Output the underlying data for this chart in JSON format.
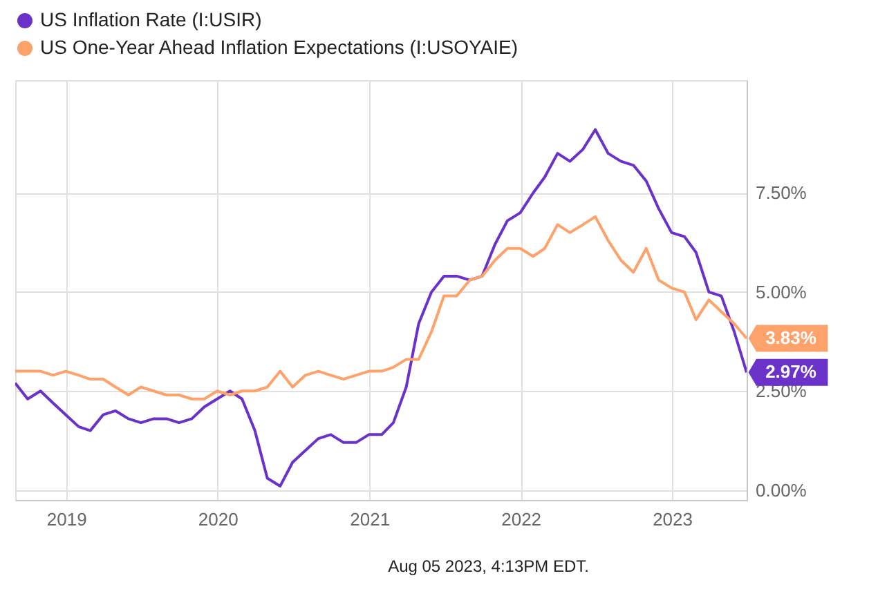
{
  "chart_data": {
    "type": "line",
    "x": [
      "2018-08-31",
      "2018-09-30",
      "2018-10-31",
      "2018-11-30",
      "2018-12-31",
      "2019-01-31",
      "2019-02-28",
      "2019-03-31",
      "2019-04-30",
      "2019-05-31",
      "2019-06-30",
      "2019-07-31",
      "2019-08-31",
      "2019-09-30",
      "2019-10-31",
      "2019-11-30",
      "2019-12-31",
      "2020-01-31",
      "2020-02-29",
      "2020-03-31",
      "2020-04-30",
      "2020-05-31",
      "2020-06-30",
      "2020-07-31",
      "2020-08-31",
      "2020-09-30",
      "2020-10-31",
      "2020-11-30",
      "2020-12-31",
      "2021-01-31",
      "2021-02-28",
      "2021-03-31",
      "2021-04-30",
      "2021-05-31",
      "2021-06-30",
      "2021-07-31",
      "2021-08-31",
      "2021-09-30",
      "2021-10-31",
      "2021-11-30",
      "2021-12-31",
      "2022-01-31",
      "2022-02-28",
      "2022-03-31",
      "2022-04-30",
      "2022-05-31",
      "2022-06-30",
      "2022-07-31",
      "2022-08-31",
      "2022-09-30",
      "2022-10-31",
      "2022-11-30",
      "2022-12-31",
      "2023-01-31",
      "2023-02-28",
      "2023-03-31",
      "2023-04-30",
      "2023-05-31",
      "2023-06-30"
    ],
    "series": [
      {
        "name": "US Inflation Rate (I:USIR)",
        "color": "#6a32c9",
        "values": [
          2.7,
          2.3,
          2.5,
          2.2,
          1.9,
          1.6,
          1.5,
          1.9,
          2.0,
          1.8,
          1.7,
          1.8,
          1.8,
          1.7,
          1.8,
          2.1,
          2.3,
          2.5,
          2.3,
          1.5,
          0.3,
          0.1,
          0.7,
          1.0,
          1.3,
          1.4,
          1.2,
          1.2,
          1.4,
          1.4,
          1.7,
          2.6,
          4.2,
          5.0,
          5.4,
          5.4,
          5.3,
          5.4,
          6.2,
          6.8,
          7.0,
          7.5,
          7.9,
          8.5,
          8.3,
          8.6,
          9.1,
          8.5,
          8.3,
          8.2,
          7.8,
          7.1,
          6.5,
          6.4,
          6.0,
          5.0,
          4.9,
          4.0,
          2.97
        ],
        "value_labels": [
          null,
          null,
          null,
          null,
          null,
          null,
          null,
          null,
          null,
          null,
          null,
          null,
          null,
          null,
          null,
          null,
          null,
          null,
          null,
          null,
          null,
          null,
          null,
          null,
          null,
          null,
          null,
          null,
          null,
          null,
          null,
          null,
          null,
          null,
          null,
          null,
          null,
          null,
          null,
          null,
          null,
          null,
          null,
          null,
          null,
          null,
          null,
          null,
          null,
          null,
          null,
          null,
          null,
          null,
          null,
          null,
          null,
          null,
          "2.97%"
        ]
      },
      {
        "name": "US One-Year Ahead Inflation Expectations (I:USOYAIE)",
        "color": "#fda26b",
        "values": [
          3.0,
          3.0,
          3.0,
          2.9,
          3.0,
          2.9,
          2.8,
          2.8,
          2.6,
          2.4,
          2.6,
          2.5,
          2.4,
          2.4,
          2.3,
          2.3,
          2.5,
          2.4,
          2.5,
          2.5,
          2.6,
          3.0,
          2.6,
          2.9,
          3.0,
          2.9,
          2.8,
          2.9,
          3.0,
          3.0,
          3.1,
          3.3,
          3.3,
          4.0,
          4.9,
          4.9,
          5.3,
          5.4,
          5.8,
          6.1,
          6.1,
          5.9,
          6.1,
          6.7,
          6.5,
          6.7,
          6.9,
          6.3,
          5.8,
          5.5,
          6.1,
          5.3,
          5.1,
          5.0,
          4.3,
          4.8,
          4.5,
          4.2,
          3.83
        ],
        "value_labels": [
          null,
          null,
          null,
          null,
          null,
          null,
          null,
          null,
          null,
          null,
          null,
          null,
          null,
          null,
          null,
          null,
          null,
          null,
          null,
          null,
          null,
          null,
          null,
          null,
          null,
          null,
          null,
          null,
          null,
          null,
          null,
          null,
          null,
          null,
          null,
          null,
          null,
          null,
          null,
          null,
          null,
          null,
          null,
          null,
          null,
          null,
          null,
          null,
          null,
          null,
          null,
          null,
          null,
          null,
          null,
          null,
          null,
          null,
          "3.83%"
        ]
      }
    ],
    "xlim": [
      "2018-08-31",
      "2023-06-30"
    ],
    "xticks": [
      "2019",
      "2020",
      "2021",
      "2022",
      "2023"
    ],
    "ylim": [
      -0.25,
      10.35
    ],
    "yticks": [
      {
        "value": 0,
        "label": "0.00%"
      },
      {
        "value": 2.5,
        "label": "2.50%"
      },
      {
        "value": 5,
        "label": "5.00%"
      },
      {
        "value": 7.5,
        "label": "7.50%"
      }
    ],
    "grid": true,
    "legend": "top left",
    "marker": "none",
    "line_style": "solid",
    "annotations": [
      "Aug 05 2023, 4:13PM EDT."
    ]
  }
}
